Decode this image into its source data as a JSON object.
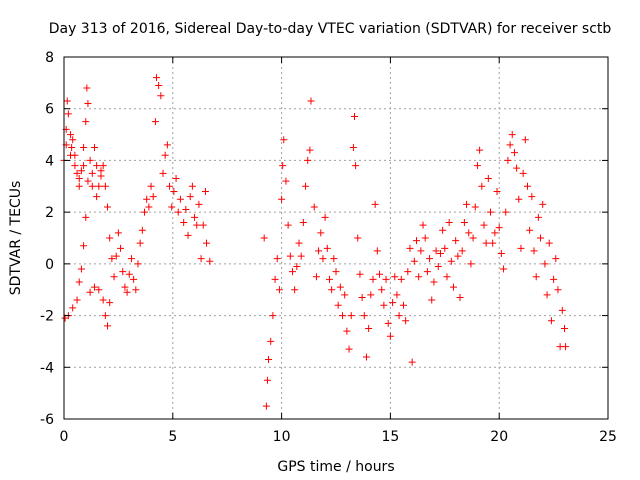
{
  "chart_data": {
    "type": "scatter",
    "title": "Day 313 of 2016, Sidereal Day-to-day VTEC variation (SDTVAR) for receiver sctb",
    "xlabel": "GPS time / hours",
    "ylabel": "SDTVAR / TECUs",
    "xlim": [
      0,
      25
    ],
    "ylim": [
      -6,
      8
    ],
    "xticks": [
      0,
      5,
      10,
      15,
      20,
      25
    ],
    "yticks": [
      -6,
      -4,
      -2,
      0,
      2,
      4,
      6,
      8
    ],
    "xtick_labels": [
      "0",
      "5",
      "10",
      "15",
      "20",
      "25"
    ],
    "ytick_labels": [
      "-6",
      "-4",
      "-2",
      "0",
      "2",
      "4",
      "6",
      "8"
    ],
    "grid": true,
    "legend": "none",
    "marker": "+",
    "color": "#ff0000",
    "series": [
      {
        "name": "SDTVAR",
        "points": [
          [
            0.0,
            4.0
          ],
          [
            0.1,
            5.2
          ],
          [
            0.15,
            6.3
          ],
          [
            0.2,
            5.8
          ],
          [
            0.3,
            5.0
          ],
          [
            0.35,
            4.5
          ],
          [
            0.4,
            4.8
          ],
          [
            0.5,
            4.2
          ],
          [
            0.6,
            3.5
          ],
          [
            0.7,
            3.0
          ],
          [
            0.8,
            3.6
          ],
          [
            0.9,
            4.5
          ],
          [
            1.0,
            5.5
          ],
          [
            1.05,
            6.8
          ],
          [
            1.1,
            6.2
          ],
          [
            1.2,
            4.0
          ],
          [
            1.3,
            3.5
          ],
          [
            1.4,
            4.5
          ],
          [
            1.5,
            3.8
          ],
          [
            1.6,
            3.0
          ],
          [
            1.7,
            3.6
          ],
          [
            1.8,
            3.8
          ],
          [
            1.9,
            3.0
          ],
          [
            2.0,
            2.2
          ],
          [
            2.1,
            1.0
          ],
          [
            2.2,
            0.2
          ],
          [
            2.3,
            -0.5
          ],
          [
            2.4,
            0.3
          ],
          [
            2.5,
            1.2
          ],
          [
            2.6,
            0.6
          ],
          [
            2.7,
            -0.3
          ],
          [
            2.8,
            -0.9
          ],
          [
            2.9,
            -1.1
          ],
          [
            3.0,
            -0.4
          ],
          [
            3.1,
            0.2
          ],
          [
            3.2,
            -0.6
          ],
          [
            3.3,
            -1.0
          ],
          [
            3.4,
            0.0
          ],
          [
            3.5,
            0.8
          ],
          [
            3.6,
            1.3
          ],
          [
            3.7,
            2.0
          ],
          [
            3.8,
            2.5
          ],
          [
            3.9,
            2.2
          ],
          [
            4.0,
            3.0
          ],
          [
            4.1,
            2.6
          ],
          [
            4.2,
            5.5
          ],
          [
            4.25,
            7.2
          ],
          [
            4.35,
            6.9
          ],
          [
            4.45,
            6.5
          ],
          [
            4.55,
            3.5
          ],
          [
            4.65,
            4.2
          ],
          [
            4.75,
            4.6
          ],
          [
            4.85,
            3.0
          ],
          [
            4.95,
            2.2
          ],
          [
            5.05,
            2.8
          ],
          [
            5.15,
            3.3
          ],
          [
            5.25,
            2.0
          ],
          [
            5.35,
            2.5
          ],
          [
            5.5,
            1.6
          ],
          [
            5.6,
            2.1
          ],
          [
            5.7,
            1.1
          ],
          [
            5.8,
            2.6
          ],
          [
            5.9,
            3.0
          ],
          [
            6.0,
            1.8
          ],
          [
            6.1,
            1.5
          ],
          [
            6.2,
            2.3
          ],
          [
            6.3,
            0.2
          ],
          [
            6.4,
            1.5
          ],
          [
            6.5,
            2.8
          ],
          [
            6.55,
            0.8
          ],
          [
            6.7,
            0.1
          ],
          [
            0.05,
            -2.1
          ],
          [
            0.2,
            -2.0
          ],
          [
            0.4,
            -1.7
          ],
          [
            0.6,
            -1.4
          ],
          [
            0.7,
            -0.7
          ],
          [
            0.8,
            -0.2
          ],
          [
            0.9,
            0.7
          ],
          [
            1.0,
            1.8
          ],
          [
            1.2,
            -1.1
          ],
          [
            1.4,
            -0.9
          ],
          [
            1.6,
            -1.0
          ],
          [
            1.8,
            -1.4
          ],
          [
            1.9,
            -2.0
          ],
          [
            2.0,
            -2.4
          ],
          [
            2.1,
            -1.5
          ],
          [
            0.1,
            4.6
          ],
          [
            0.3,
            4.2
          ],
          [
            0.5,
            3.8
          ],
          [
            0.7,
            3.3
          ],
          [
            0.9,
            3.8
          ],
          [
            1.1,
            3.2
          ],
          [
            1.3,
            3.0
          ],
          [
            1.5,
            2.6
          ],
          [
            1.7,
            3.4
          ],
          [
            9.2,
            1.0
          ],
          [
            9.3,
            -5.5
          ],
          [
            9.35,
            -4.5
          ],
          [
            9.4,
            -3.7
          ],
          [
            9.5,
            -3.0
          ],
          [
            9.6,
            -2.0
          ],
          [
            9.7,
            -0.6
          ],
          [
            9.8,
            0.2
          ],
          [
            9.9,
            -1.0
          ],
          [
            10.0,
            2.5
          ],
          [
            10.05,
            3.8
          ],
          [
            10.1,
            4.8
          ],
          [
            10.2,
            3.2
          ],
          [
            10.3,
            1.5
          ],
          [
            10.4,
            0.3
          ],
          [
            10.5,
            -0.3
          ],
          [
            10.6,
            -1.0
          ],
          [
            10.7,
            -0.1
          ],
          [
            10.8,
            0.8
          ],
          [
            10.9,
            0.3
          ],
          [
            11.0,
            1.6
          ],
          [
            11.1,
            3.0
          ],
          [
            11.2,
            4.0
          ],
          [
            11.3,
            4.4
          ],
          [
            11.35,
            6.3
          ],
          [
            11.5,
            2.2
          ],
          [
            11.6,
            -0.5
          ],
          [
            11.7,
            0.5
          ],
          [
            11.8,
            1.2
          ],
          [
            11.9,
            0.2
          ],
          [
            12.0,
            1.8
          ],
          [
            12.1,
            0.6
          ],
          [
            12.2,
            -0.6
          ],
          [
            12.3,
            -1.0
          ],
          [
            12.4,
            0.2
          ],
          [
            12.5,
            -0.3
          ],
          [
            12.6,
            -1.6
          ],
          [
            12.7,
            -0.9
          ],
          [
            12.8,
            -2.0
          ],
          [
            12.9,
            -1.2
          ],
          [
            13.0,
            -2.6
          ],
          [
            13.1,
            -3.3
          ],
          [
            13.2,
            -2.0
          ],
          [
            13.3,
            4.5
          ],
          [
            13.35,
            5.7
          ],
          [
            13.4,
            3.8
          ],
          [
            13.5,
            1.0
          ],
          [
            13.6,
            -0.4
          ],
          [
            13.7,
            -1.3
          ],
          [
            13.8,
            -2.0
          ],
          [
            13.9,
            -3.6
          ],
          [
            14.0,
            -2.5
          ],
          [
            14.1,
            -1.2
          ],
          [
            14.2,
            -0.6
          ],
          [
            14.3,
            2.3
          ],
          [
            14.4,
            0.5
          ],
          [
            14.5,
            -0.4
          ],
          [
            14.6,
            -1.0
          ],
          [
            14.7,
            -1.6
          ],
          [
            14.8,
            -0.6
          ],
          [
            14.9,
            -2.3
          ],
          [
            15.0,
            -2.8
          ],
          [
            15.1,
            -1.5
          ],
          [
            15.2,
            -0.5
          ],
          [
            15.3,
            -1.2
          ],
          [
            15.4,
            -2.0
          ],
          [
            15.5,
            -0.6
          ],
          [
            15.6,
            -1.6
          ],
          [
            15.7,
            -2.2
          ],
          [
            15.8,
            -0.3
          ],
          [
            15.9,
            0.6
          ],
          [
            16.0,
            -3.8
          ],
          [
            16.1,
            0.1
          ],
          [
            16.2,
            0.9
          ],
          [
            16.3,
            -0.5
          ],
          [
            16.4,
            0.5
          ],
          [
            16.5,
            1.5
          ],
          [
            16.6,
            1.0
          ],
          [
            16.7,
            -0.3
          ],
          [
            16.8,
            0.2
          ],
          [
            16.9,
            -1.4
          ],
          [
            17.0,
            -0.7
          ],
          [
            17.1,
            0.5
          ],
          [
            17.2,
            -0.1
          ],
          [
            17.3,
            0.4
          ],
          [
            17.4,
            1.3
          ],
          [
            17.5,
            0.6
          ],
          [
            17.6,
            -0.5
          ],
          [
            17.7,
            1.6
          ],
          [
            17.8,
            0.1
          ],
          [
            17.9,
            -0.9
          ],
          [
            18.0,
            0.9
          ],
          [
            18.1,
            0.3
          ],
          [
            18.2,
            -1.3
          ],
          [
            18.3,
            0.5
          ],
          [
            18.4,
            1.6
          ],
          [
            18.5,
            2.3
          ],
          [
            18.6,
            1.2
          ],
          [
            18.7,
            0.0
          ],
          [
            18.8,
            1.0
          ],
          [
            18.9,
            2.2
          ],
          [
            19.0,
            3.8
          ],
          [
            19.1,
            4.4
          ],
          [
            19.2,
            3.0
          ],
          [
            19.3,
            1.5
          ],
          [
            19.4,
            0.8
          ],
          [
            19.5,
            3.3
          ],
          [
            19.6,
            2.0
          ],
          [
            19.7,
            0.8
          ],
          [
            19.8,
            1.2
          ],
          [
            19.9,
            2.8
          ],
          [
            20.0,
            1.4
          ],
          [
            20.1,
            0.4
          ],
          [
            20.2,
            -0.2
          ],
          [
            20.3,
            2.0
          ],
          [
            20.4,
            4.0
          ],
          [
            20.5,
            4.6
          ],
          [
            20.6,
            5.0
          ],
          [
            20.7,
            4.3
          ],
          [
            20.8,
            3.7
          ],
          [
            20.9,
            2.5
          ],
          [
            21.0,
            0.6
          ],
          [
            21.1,
            3.5
          ],
          [
            21.2,
            4.8
          ],
          [
            21.3,
            3.0
          ],
          [
            21.4,
            1.3
          ],
          [
            21.5,
            2.6
          ],
          [
            21.6,
            0.5
          ],
          [
            21.7,
            -0.5
          ],
          [
            21.8,
            1.8
          ],
          [
            21.9,
            1.0
          ],
          [
            22.0,
            2.3
          ],
          [
            22.1,
            0.0
          ],
          [
            22.2,
            -1.2
          ],
          [
            22.3,
            0.8
          ],
          [
            22.4,
            -2.2
          ],
          [
            22.5,
            -0.6
          ],
          [
            22.6,
            0.2
          ],
          [
            22.7,
            -1.0
          ],
          [
            22.8,
            -3.2
          ],
          [
            22.9,
            -1.8
          ],
          [
            23.0,
            -2.5
          ],
          [
            23.05,
            -3.2
          ]
        ]
      }
    ]
  }
}
